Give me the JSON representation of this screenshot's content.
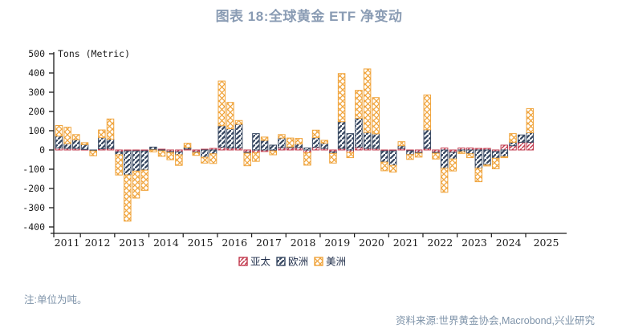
{
  "title": "图表 18:全球黄金 ETF 净变动",
  "note": "注:单位为吨。",
  "source": "资料来源:世界黄金协会,Macrobond,兴业研究",
  "colors": {
    "title_slate": "#8a9cb4",
    "footnote_slate": "#7e93a9",
    "axis_text": "#1a1a1a",
    "asia_red": "#c23a4e",
    "europe_navy": "#3a4a63",
    "americas_orange": "#f0a43c"
  },
  "chart_data": {
    "type": "bar",
    "stacked": true,
    "title": "图表 18:全球黄金 ETF 净变动",
    "y_axis_label": "Tons (Metric)",
    "ylim": [
      -400,
      500
    ],
    "ytick_step": 100,
    "y_ticks": [
      500,
      400,
      300,
      200,
      100,
      0,
      -100,
      -200,
      -300,
      -400
    ],
    "x_labels": [
      "2011",
      "2012",
      "2013",
      "2014",
      "2015",
      "2016",
      "2017",
      "2018",
      "2019",
      "2020",
      "2021",
      "2022",
      "2023",
      "2024",
      "2025"
    ],
    "legend_position": "bottom",
    "grid": false,
    "categories": [
      "2011Q2",
      "2011Q3",
      "2011Q4",
      "2012Q1",
      "2012Q2",
      "2012Q3",
      "2012Q4",
      "2013Q1",
      "2013Q2",
      "2013Q3",
      "2013Q4",
      "2014Q1",
      "2014Q2",
      "2014Q3",
      "2014Q4",
      "2015Q1",
      "2015Q2",
      "2015Q3",
      "2015Q4",
      "2016Q1",
      "2016Q2",
      "2016Q3",
      "2016Q4",
      "2017Q1",
      "2017Q2",
      "2017Q3",
      "2017Q4",
      "2018Q1",
      "2018Q2",
      "2018Q3",
      "2018Q4",
      "2019Q1",
      "2019Q2",
      "2019Q3",
      "2019Q4",
      "2020Q1",
      "2020Q2",
      "2020Q3",
      "2020Q4",
      "2021Q1",
      "2021Q2",
      "2021Q3",
      "2021Q4",
      "2022Q1",
      "2022Q2",
      "2022Q3",
      "2022Q4",
      "2023Q1",
      "2023Q2",
      "2023Q3",
      "2023Q4",
      "2024Q1",
      "2024Q2",
      "2024Q3",
      "2024Q4",
      "2025Q1"
    ],
    "series": [
      {
        "name": "亚太",
        "color": "#c23a4e",
        "pattern": "diag-thin",
        "values": [
          10,
          8,
          8,
          3,
          0,
          6,
          8,
          -10,
          -5,
          -5,
          -5,
          3,
          4,
          -8,
          -10,
          5,
          -10,
          4,
          8,
          14,
          10,
          10,
          -12,
          -14,
          -8,
          -5,
          12,
          12,
          12,
          -14,
          14,
          8,
          -10,
          8,
          -12,
          15,
          8,
          8,
          -5,
          -5,
          8,
          -4,
          -12,
          8,
          -12,
          10,
          -12,
          10,
          10,
          8,
          8,
          -8,
          25,
          22,
          40,
          40
        ]
      },
      {
        "name": "欧洲",
        "color": "#3a4a63",
        "pattern": "diag",
        "values": [
          62,
          25,
          45,
          25,
          -5,
          58,
          48,
          -15,
          -125,
          -105,
          -100,
          12,
          -5,
          -5,
          -15,
          8,
          -3,
          -38,
          -20,
          112,
          100,
          124,
          -5,
          85,
          50,
          25,
          50,
          4,
          19,
          10,
          50,
          28,
          -8,
          139,
          85,
          150,
          83,
          76,
          -58,
          -75,
          14,
          -20,
          -5,
          97,
          -5,
          -95,
          -35,
          -10,
          -20,
          -95,
          -78,
          -35,
          -35,
          18,
          38,
          50
        ]
      },
      {
        "name": "美洲",
        "color": "#f0a43c",
        "pattern": "cross",
        "values": [
          55,
          85,
          27,
          10,
          -25,
          40,
          105,
          -105,
          -240,
          -140,
          -105,
          -10,
          -28,
          -38,
          -55,
          22,
          -15,
          -30,
          -50,
          232,
          137,
          19,
          -65,
          -45,
          17,
          -20,
          18,
          46,
          29,
          -65,
          39,
          14,
          -50,
          250,
          -28,
          145,
          330,
          188,
          -45,
          -35,
          21,
          -25,
          -20,
          181,
          -30,
          -125,
          -62,
          -8,
          -20,
          -70,
          -5,
          -55,
          -5,
          45,
          0,
          125
        ]
      }
    ]
  }
}
